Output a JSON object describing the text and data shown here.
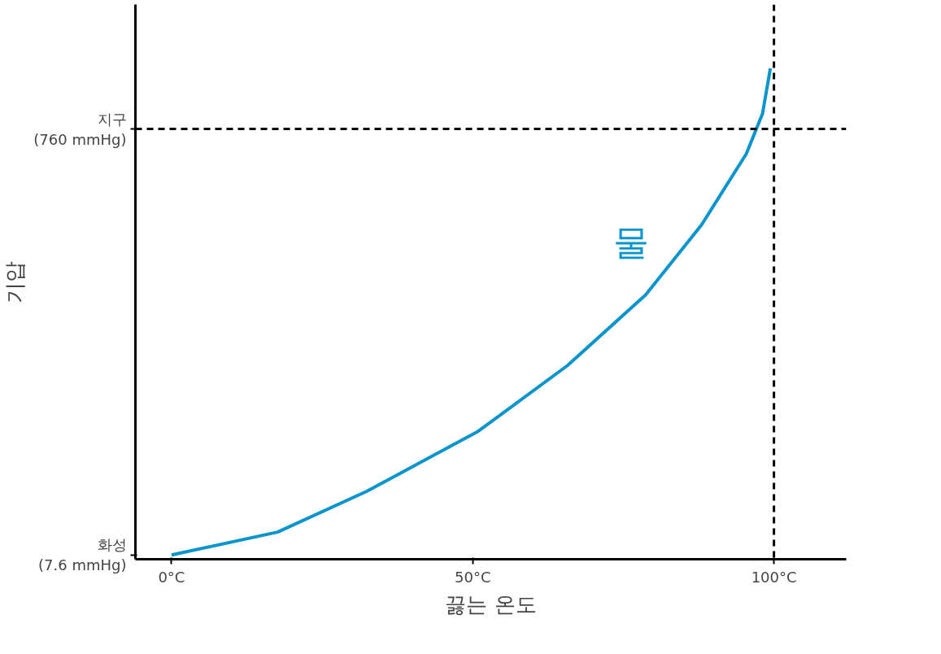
{
  "chart_data": {
    "type": "line",
    "xlabel": "끓는 온도",
    "ylabel": "기압",
    "xlim": [
      -6,
      112
    ],
    "ylim": [
      0,
      980
    ],
    "xticks": [
      {
        "value": 0,
        "label": "0°C"
      },
      {
        "value": 50,
        "label": "50°C"
      },
      {
        "value": 100,
        "label": "100°C"
      }
    ],
    "yticks": [
      {
        "value": 7.6,
        "label": "화성\n(7.6 mmHg)"
      },
      {
        "value": 760,
        "label": "지구\n(760 mmHg)"
      }
    ],
    "series": [
      {
        "name": "물",
        "color": "#0a94cc",
        "x": [
          0,
          17.6,
          32.4,
          50.9,
          65.7,
          78.7,
          88,
          95.4,
          98.1,
          99.4
        ],
        "values": [
          7.6,
          48,
          120,
          226,
          342,
          467,
          591,
          716,
          787,
          867
        ]
      }
    ],
    "ref_lines": [
      {
        "axis": "y",
        "value": 760,
        "line_style": "dashed",
        "color": "#000000"
      },
      {
        "axis": "x",
        "value": 100,
        "line_style": "dashed",
        "color": "#000000"
      }
    ],
    "grid": false
  }
}
